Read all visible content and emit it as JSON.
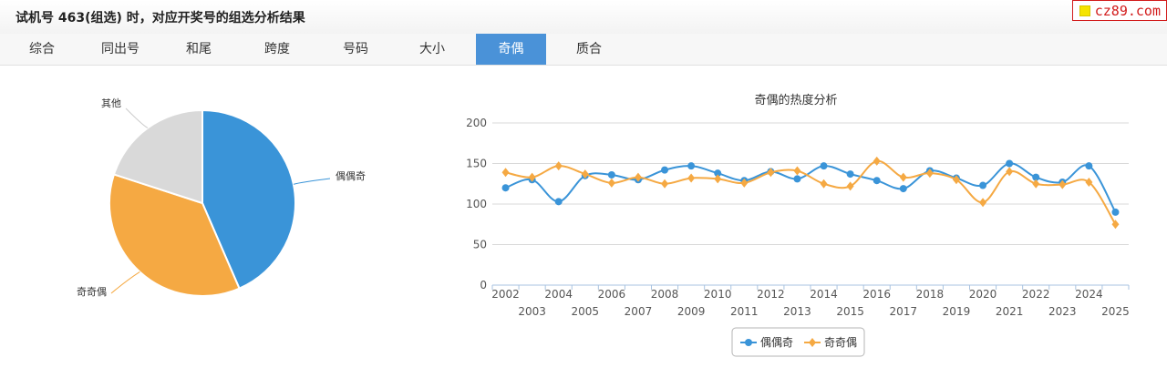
{
  "header": {
    "title": "试机号 463(组选) 时，对应开奖号的组选分析结果"
  },
  "site_badge": "cz89.com",
  "tabs": [
    {
      "label": "综合",
      "active": false
    },
    {
      "label": "同出号",
      "active": false
    },
    {
      "label": "和尾",
      "active": false
    },
    {
      "label": "跨度",
      "active": false
    },
    {
      "label": "号码",
      "active": false
    },
    {
      "label": "大小",
      "active": false
    },
    {
      "label": "奇偶",
      "active": true
    },
    {
      "label": "质合",
      "active": false
    }
  ],
  "colors": {
    "blue": "#3a94d8",
    "orange": "#f5a943",
    "gray": "#d9d9d9",
    "tab_active": "#4a92d8"
  },
  "chart_data": [
    {
      "type": "pie",
      "title": "",
      "slices": [
        {
          "label": "偶偶奇",
          "value": 43.5,
          "color": "#3a94d8"
        },
        {
          "label": "奇奇偶",
          "value": 36.5,
          "color": "#f5a943"
        },
        {
          "label": "其他",
          "value": 20.0,
          "color": "#d9d9d9"
        }
      ]
    },
    {
      "type": "line",
      "title": "奇偶的热度分析",
      "xlabel": "",
      "ylabel": "",
      "x": [
        "2002",
        "2003",
        "2004",
        "2005",
        "2006",
        "2007",
        "2008",
        "2009",
        "2010",
        "2011",
        "2012",
        "2013",
        "2014",
        "2015",
        "2016",
        "2017",
        "2018",
        "2019",
        "2020",
        "2021",
        "2022",
        "2023",
        "2024",
        "2025"
      ],
      "ylim": [
        0,
        200
      ],
      "yticks": [
        0,
        50,
        100,
        150,
        200
      ],
      "grid": true,
      "legend": "bottom",
      "series": [
        {
          "name": "偶偶奇",
          "color": "#3a94d8",
          "marker": "circle",
          "values": [
            120,
            130,
            103,
            135,
            136,
            130,
            142,
            147,
            138,
            129,
            140,
            131,
            147,
            137,
            129,
            119,
            141,
            132,
            123,
            150,
            133,
            127,
            147,
            90
          ]
        },
        {
          "name": "奇奇偶",
          "color": "#f5a943",
          "marker": "diamond",
          "values": [
            139,
            133,
            147,
            137,
            126,
            133,
            125,
            132,
            131,
            126,
            139,
            141,
            125,
            122,
            153,
            133,
            138,
            130,
            102,
            140,
            125,
            124,
            127,
            75
          ]
        }
      ]
    }
  ]
}
